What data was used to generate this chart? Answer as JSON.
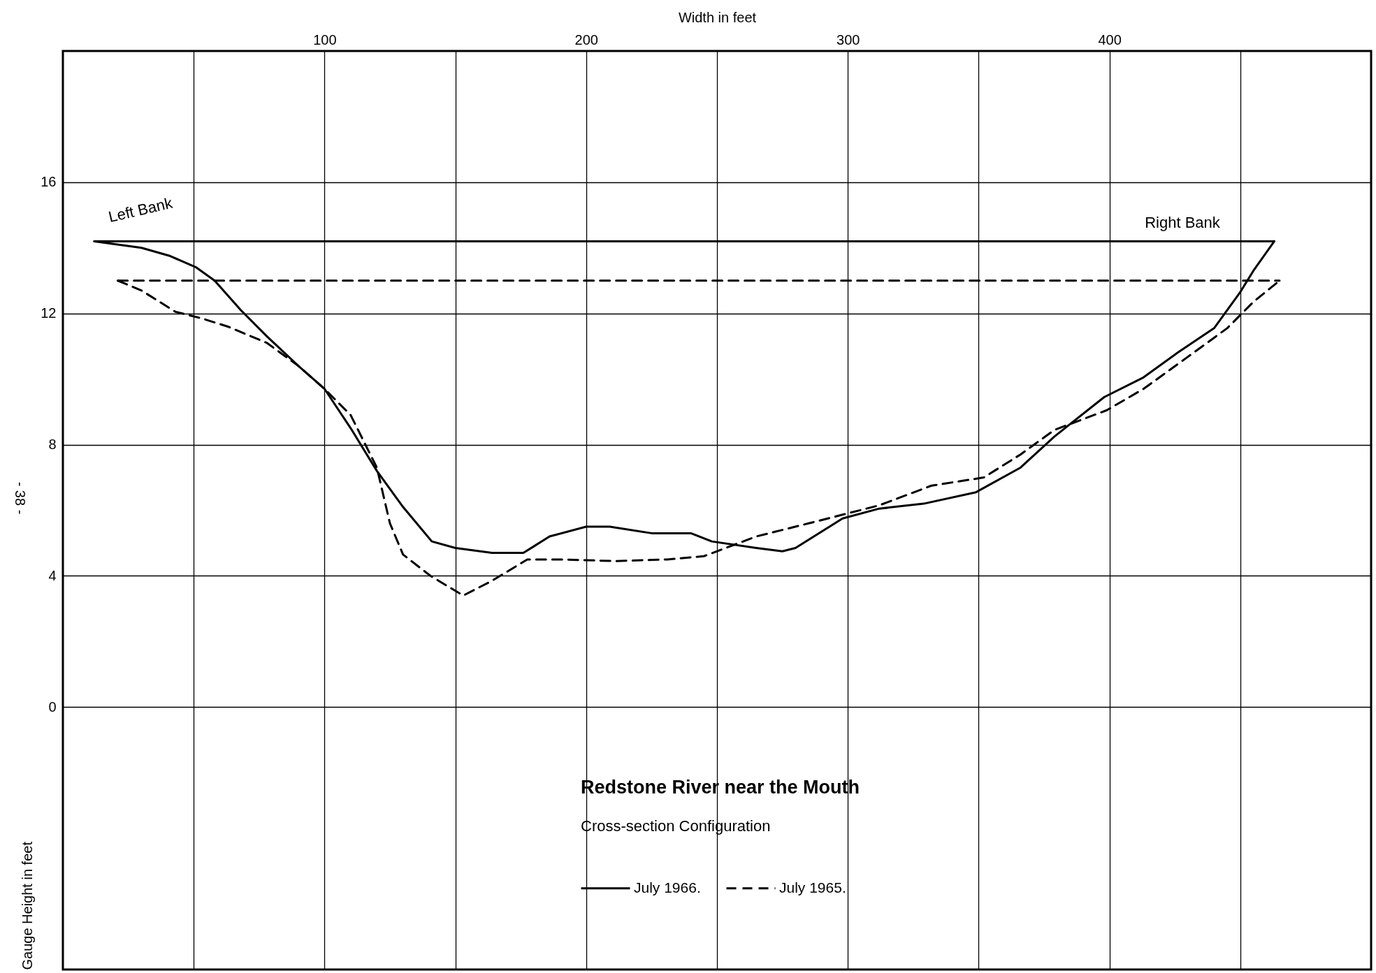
{
  "chart_data": {
    "type": "line",
    "title": "Redstone River near the Mouth",
    "subtitle": "Cross-section Configuration",
    "xlabel": "Width in feet",
    "ylabel": "Gauge Height in feet",
    "xlim": [
      0,
      500
    ],
    "xticks": [
      {
        "value": 50,
        "label": null
      },
      100,
      {
        "value": 150,
        "label": null
      },
      200,
      {
        "value": 250,
        "label": null
      },
      300,
      {
        "value": 350,
        "label": null
      },
      400,
      {
        "value": 450,
        "label": null
      }
    ],
    "ylim": [
      -8,
      20
    ],
    "yticks": [
      0,
      4,
      8,
      12,
      16
    ],
    "grid": true,
    "legend": "bottom",
    "annotations": [
      "Left Bank",
      "Right Bank",
      "- 38 -"
    ],
    "series": [
      {
        "name": "July 1966.",
        "color": "#000000",
        "line_style": "solid",
        "x": [
          12,
          30,
          41,
          51,
          58,
          68,
          78,
          90,
          100,
          110,
          120,
          130,
          141,
          150,
          164,
          176,
          186,
          200,
          209,
          225,
          240,
          248,
          265,
          275,
          280,
          298,
          312,
          329,
          349,
          366,
          379,
          398,
          413,
          426,
          440,
          450,
          455,
          463
        ],
        "values": [
          14.2,
          14.0,
          13.75,
          13.4,
          13.0,
          12.1,
          11.3,
          10.4,
          9.7,
          8.5,
          7.2,
          6.1,
          5.05,
          4.85,
          4.7,
          4.7,
          5.2,
          5.5,
          5.5,
          5.3,
          5.3,
          5.05,
          4.85,
          4.75,
          4.85,
          5.75,
          6.05,
          6.2,
          6.55,
          7.3,
          8.25,
          9.45,
          10.05,
          10.8,
          11.55,
          12.65,
          13.3,
          14.2
        ]
      },
      {
        "color": "#000000",
        "line_style": "solid",
        "x": [
          12,
          463
        ],
        "values": [
          14.2,
          14.2
        ]
      },
      {
        "name": "July 1965.",
        "color": "#000000",
        "line_style": "dashed",
        "x": [
          21,
          30,
          43,
          53,
          63,
          78,
          90,
          100,
          110,
          120,
          125,
          130,
          140.5,
          153,
          164,
          177.5,
          191,
          211,
          231,
          245,
          265,
          285,
          312,
          332,
          352,
          366,
          379,
          399,
          413,
          429.5,
          445,
          455,
          465
        ],
        "values": [
          13.0,
          12.7,
          12.05,
          11.85,
          11.6,
          11.1,
          10.4,
          9.7,
          8.9,
          7.3,
          5.6,
          4.65,
          4.0,
          3.4,
          3.85,
          4.5,
          4.5,
          4.45,
          4.5,
          4.6,
          5.2,
          5.6,
          6.15,
          6.75,
          7.0,
          7.7,
          8.45,
          9.05,
          9.7,
          10.65,
          11.55,
          12.35,
          13.0
        ]
      },
      {
        "color": "#000000",
        "line_style": "dashed",
        "x": [
          21,
          465
        ],
        "values": [
          13.0,
          13.0
        ]
      }
    ]
  }
}
